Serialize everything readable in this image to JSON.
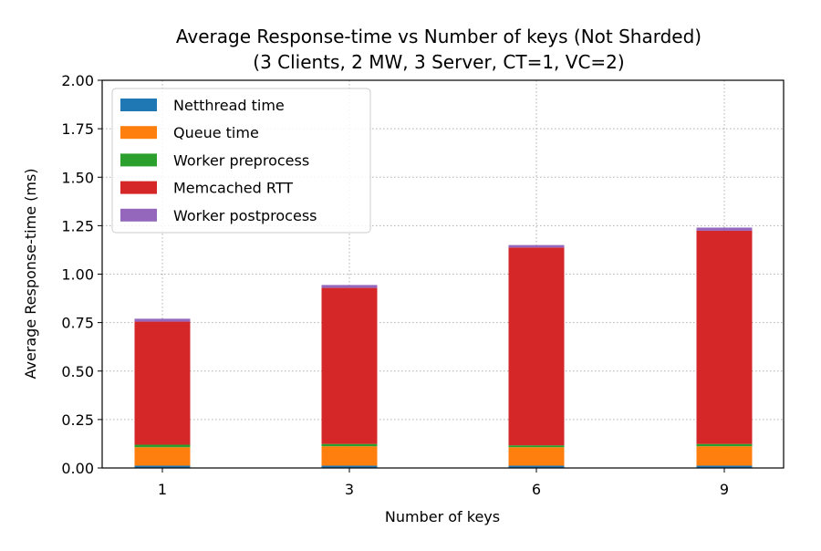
{
  "chart_data": {
    "type": "bar",
    "stacked": true,
    "title_line1": "Average Response-time vs Number of keys (Not Sharded)",
    "title_line2": "(3 Clients, 2 MW, 3 Server, CT=1, VC=2)",
    "xlabel": "Number of keys",
    "ylabel": "Average Response-time (ms)",
    "categories": [
      "1",
      "3",
      "6",
      "9"
    ],
    "ylim": [
      0,
      2.0
    ],
    "yticks": [
      0.0,
      0.25,
      0.5,
      0.75,
      1.0,
      1.25,
      1.5,
      1.75,
      2.0
    ],
    "ytick_labels": [
      "0.00",
      "0.25",
      "0.50",
      "0.75",
      "1.00",
      "1.25",
      "1.50",
      "1.75",
      "2.00"
    ],
    "grid": true,
    "legend_position": "top-left",
    "series": [
      {
        "name": "Netthread time",
        "color": "#1f77b4",
        "values": [
          0.012,
          0.012,
          0.012,
          0.012
        ]
      },
      {
        "name": "Queue time",
        "color": "#ff7f0e",
        "values": [
          0.095,
          0.1,
          0.095,
          0.1
        ]
      },
      {
        "name": "Worker preprocess",
        "color": "#2ca02c",
        "values": [
          0.013,
          0.012,
          0.01,
          0.012
        ]
      },
      {
        "name": "Memcached RTT",
        "color": "#d62728",
        "values": [
          0.635,
          0.805,
          1.02,
          1.1
        ]
      },
      {
        "name": "Worker postprocess",
        "color": "#9467bd",
        "values": [
          0.015,
          0.015,
          0.013,
          0.016
        ]
      }
    ]
  }
}
